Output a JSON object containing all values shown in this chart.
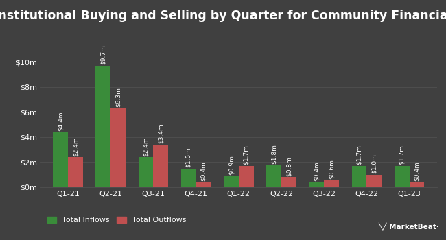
{
  "title": "Institutional Buying and Selling by Quarter for Community Financial",
  "quarters": [
    "Q1-21",
    "Q2-21",
    "Q3-21",
    "Q4-21",
    "Q1-22",
    "Q2-22",
    "Q3-22",
    "Q4-22",
    "Q1-23"
  ],
  "inflows": [
    4.4,
    9.7,
    2.4,
    1.5,
    0.9,
    1.8,
    0.4,
    1.7,
    1.7
  ],
  "outflows": [
    2.4,
    6.3,
    3.4,
    0.4,
    1.7,
    0.8,
    0.6,
    1.0,
    0.4
  ],
  "inflow_labels": [
    "$4.4m",
    "$9.7m",
    "$2.4m",
    "$1.5m",
    "$0.9m",
    "$1.8m",
    "$0.4m",
    "$1.7m",
    "$1.7m"
  ],
  "outflow_labels": [
    "$2.4m",
    "$6.3m",
    "$3.4m",
    "$0.4m",
    "$1.7m",
    "$0.8m",
    "$0.6m",
    "$1.0m",
    "$0.4m"
  ],
  "inflow_color": "#3a8c3a",
  "outflow_color": "#c05050",
  "bg_color": "#404040",
  "text_color": "#ffffff",
  "grid_color": "#505050",
  "legend_inflow": "Total Inflows",
  "legend_outflow": "Total Outflows",
  "ylim": [
    0,
    11.5
  ],
  "yticks": [
    0,
    2,
    4,
    6,
    8,
    10
  ],
  "ytick_labels": [
    "$0m",
    "$2m",
    "$4m",
    "$6m",
    "$8m",
    "$10m"
  ],
  "title_fontsize": 12.5,
  "label_fontsize": 6.5,
  "axis_fontsize": 8,
  "legend_fontsize": 8,
  "bar_width": 0.35
}
